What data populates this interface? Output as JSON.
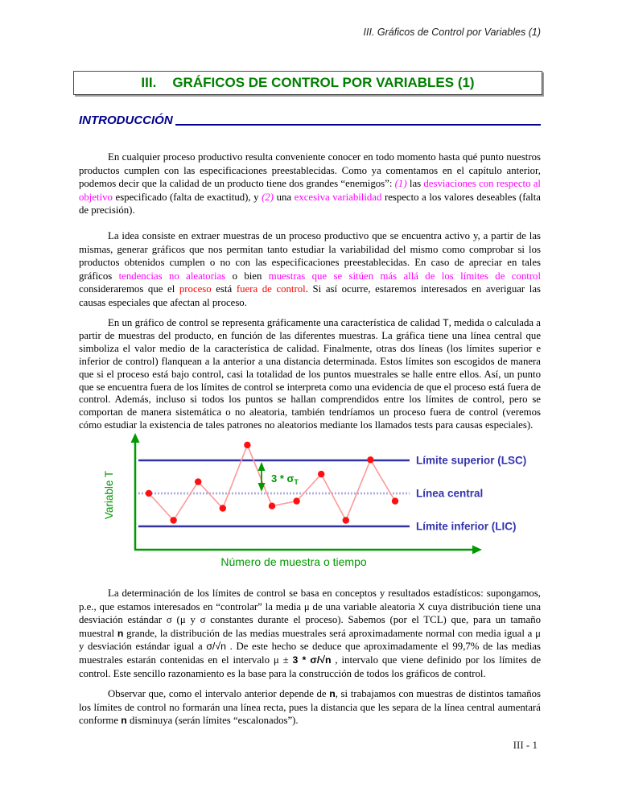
{
  "page": {
    "running_header": "III.  Gráficos de Control por Variables (1)",
    "footer_page_number": "III - 1"
  },
  "title_box": {
    "numeral": "III.",
    "title": "GRÁFICOS DE CONTROL POR VARIABLES (1)"
  },
  "section": {
    "heading": "INTRODUCCIÓN"
  },
  "colors": {
    "title_green": "#008000",
    "heading_navy": "#00008B",
    "magenta": "#FF00FF",
    "red": "#FF0000",
    "axis_green": "#009900",
    "limit_navy": "#3333A0",
    "label_blue": "#3333B0",
    "point_red": "#FF1010",
    "series_pink": "#FF9999"
  },
  "paragraphs": {
    "p1": [
      {
        "t": "En cualquier proceso productivo resulta conveniente conocer en todo momento hasta qué punto nuestros productos cumplen con las especificaciones preestablecidas. Como ya comentamos en el capítulo anterior, podemos decir que la calidad de un producto tiene dos grandes “enemigos”: "
      },
      {
        "t": "(1)",
        "c": "magenta",
        "i": true
      },
      {
        "t": " las "
      },
      {
        "t": "desviaciones con respecto al objetivo",
        "c": "magenta"
      },
      {
        "t": " especificado (falta de exactitud), y "
      },
      {
        "t": "(2)",
        "c": "magenta",
        "i": true
      },
      {
        "t": " una "
      },
      {
        "t": "excesiva variabilidad",
        "c": "magenta"
      },
      {
        "t": " respecto a los valores deseables (falta de precisión)."
      }
    ],
    "p2": [
      {
        "t": "La idea consiste en extraer muestras de un proceso productivo que se encuentra activo y, a partir de las mismas, generar gráficos que nos permitan tanto estudiar la variabilidad del mismo como comprobar si los productos obtenidos cumplen o no con las especificaciones preestablecidas. En caso de apreciar en tales gráficos "
      },
      {
        "t": "tendencias no aleatorias",
        "c": "magenta"
      },
      {
        "t": " o bien "
      },
      {
        "t": "muestras que se sitúen más allá de los límites de control",
        "c": "magenta"
      },
      {
        "t": " consideraremos que el "
      },
      {
        "t": "proceso",
        "c": "red"
      },
      {
        "t": " está "
      },
      {
        "t": "fuera de control",
        "c": "red"
      },
      {
        "t": ". Si así ocurre, estaremos interesados en averiguar las causas especiales que afectan al proceso."
      }
    ],
    "p3": [
      {
        "t": "En un gráfico de control se representa gráficamente una característica de calidad "
      },
      {
        "t": "T",
        "f": "sans"
      },
      {
        "t": ", medida o calculada a partir de muestras del producto, en función de las diferentes muestras. La gráfica tiene una línea central que simboliza el valor medio de la característica de calidad. Finalmente, otras dos líneas (los límites superior e inferior de control) flanquean a la anterior a una distancia determinada. Estos límites son escogidos de manera que si el proceso está bajo control, casi la totalidad de los puntos muestrales se halle entre ellos. Así, un punto que se encuentra fuera de los límites de control se interpreta como una evidencia de que el proceso está fuera de control. Además, incluso si todos los puntos se hallan comprendidos entre los límites de control, pero se comportan de manera sistemática o no aleatoria, también tendríamos un proceso fuera de control (veremos cómo estudiar la existencia de tales patrones no aleatorios mediante los llamados tests para causas especiales)."
      }
    ],
    "p4": [
      {
        "t": "La determinación de los límites de control se basa en conceptos y resultados estadísticos: supongamos, p.e., que estamos interesados en “controlar” la media μ  de una variable aleatoria "
      },
      {
        "t": "X",
        "f": "sans"
      },
      {
        "t": "  cuya distribución tiene una desviación estándar σ  (μ y σ constantes durante el proceso). Sabemos (por el TCL) que, para un tamaño muestral "
      },
      {
        "t": "n",
        "f": "sans",
        "b": true
      },
      {
        "t": " grande, la distribución de las medias muestrales será aproximadamente normal con media igual a μ y desviación estándar igual a "
      },
      {
        "t": "σ/√n",
        "f": "sans"
      },
      {
        "t": " . De este hecho se deduce que aproximadamente el 99,7% de las medias muestrales estarán contenidas en el intervalo  μ  ±  "
      },
      {
        "t": "3 * σ/√n",
        "f": "sans",
        "b": true
      },
      {
        "t": " , intervalo que viene definido por los límites de control. Este sencillo razonamiento es la base para la construcción de todos los gráficos de control."
      }
    ],
    "p5": [
      {
        "t": "Observar que, como el intervalo anterior depende de "
      },
      {
        "t": "n",
        "f": "sans",
        "b": true
      },
      {
        "t": ", si trabajamos con muestras de distintos tamaños los límites de control no formarán una línea recta, pues la distancia que les separa de la línea central aumentará conforme "
      },
      {
        "t": "n",
        "f": "sans",
        "b": true
      },
      {
        "t": " disminuya (serán límites “escalonados”)."
      }
    ]
  },
  "chart_data": {
    "type": "line",
    "title": "",
    "ylabel": "Variable T",
    "xlabel": "Número de muestra o tiempo",
    "legend": "none",
    "grid": false,
    "ylim": [
      -4.5,
      5
    ],
    "limit_lines": [
      {
        "label": "Límite superior (LSC)",
        "value": 3,
        "style": "solid"
      },
      {
        "label": "Línea central",
        "value": 0,
        "style": "dotted"
      },
      {
        "label": "Límite inferior (LIC)",
        "value": -3,
        "style": "solid"
      }
    ],
    "annotation": {
      "label": "3 * σ",
      "sub": "T",
      "meaning": "distancia entre la línea central y el límite superior"
    },
    "series": [
      {
        "name": "Muestras",
        "x": [
          1,
          2,
          3,
          4,
          5,
          6,
          7,
          8,
          9,
          10,
          11
        ],
        "values": [
          0.0,
          -2.45,
          1.05,
          -1.35,
          4.4,
          -1.15,
          -0.7,
          1.75,
          -2.45,
          3.05,
          -0.7
        ]
      }
    ]
  }
}
